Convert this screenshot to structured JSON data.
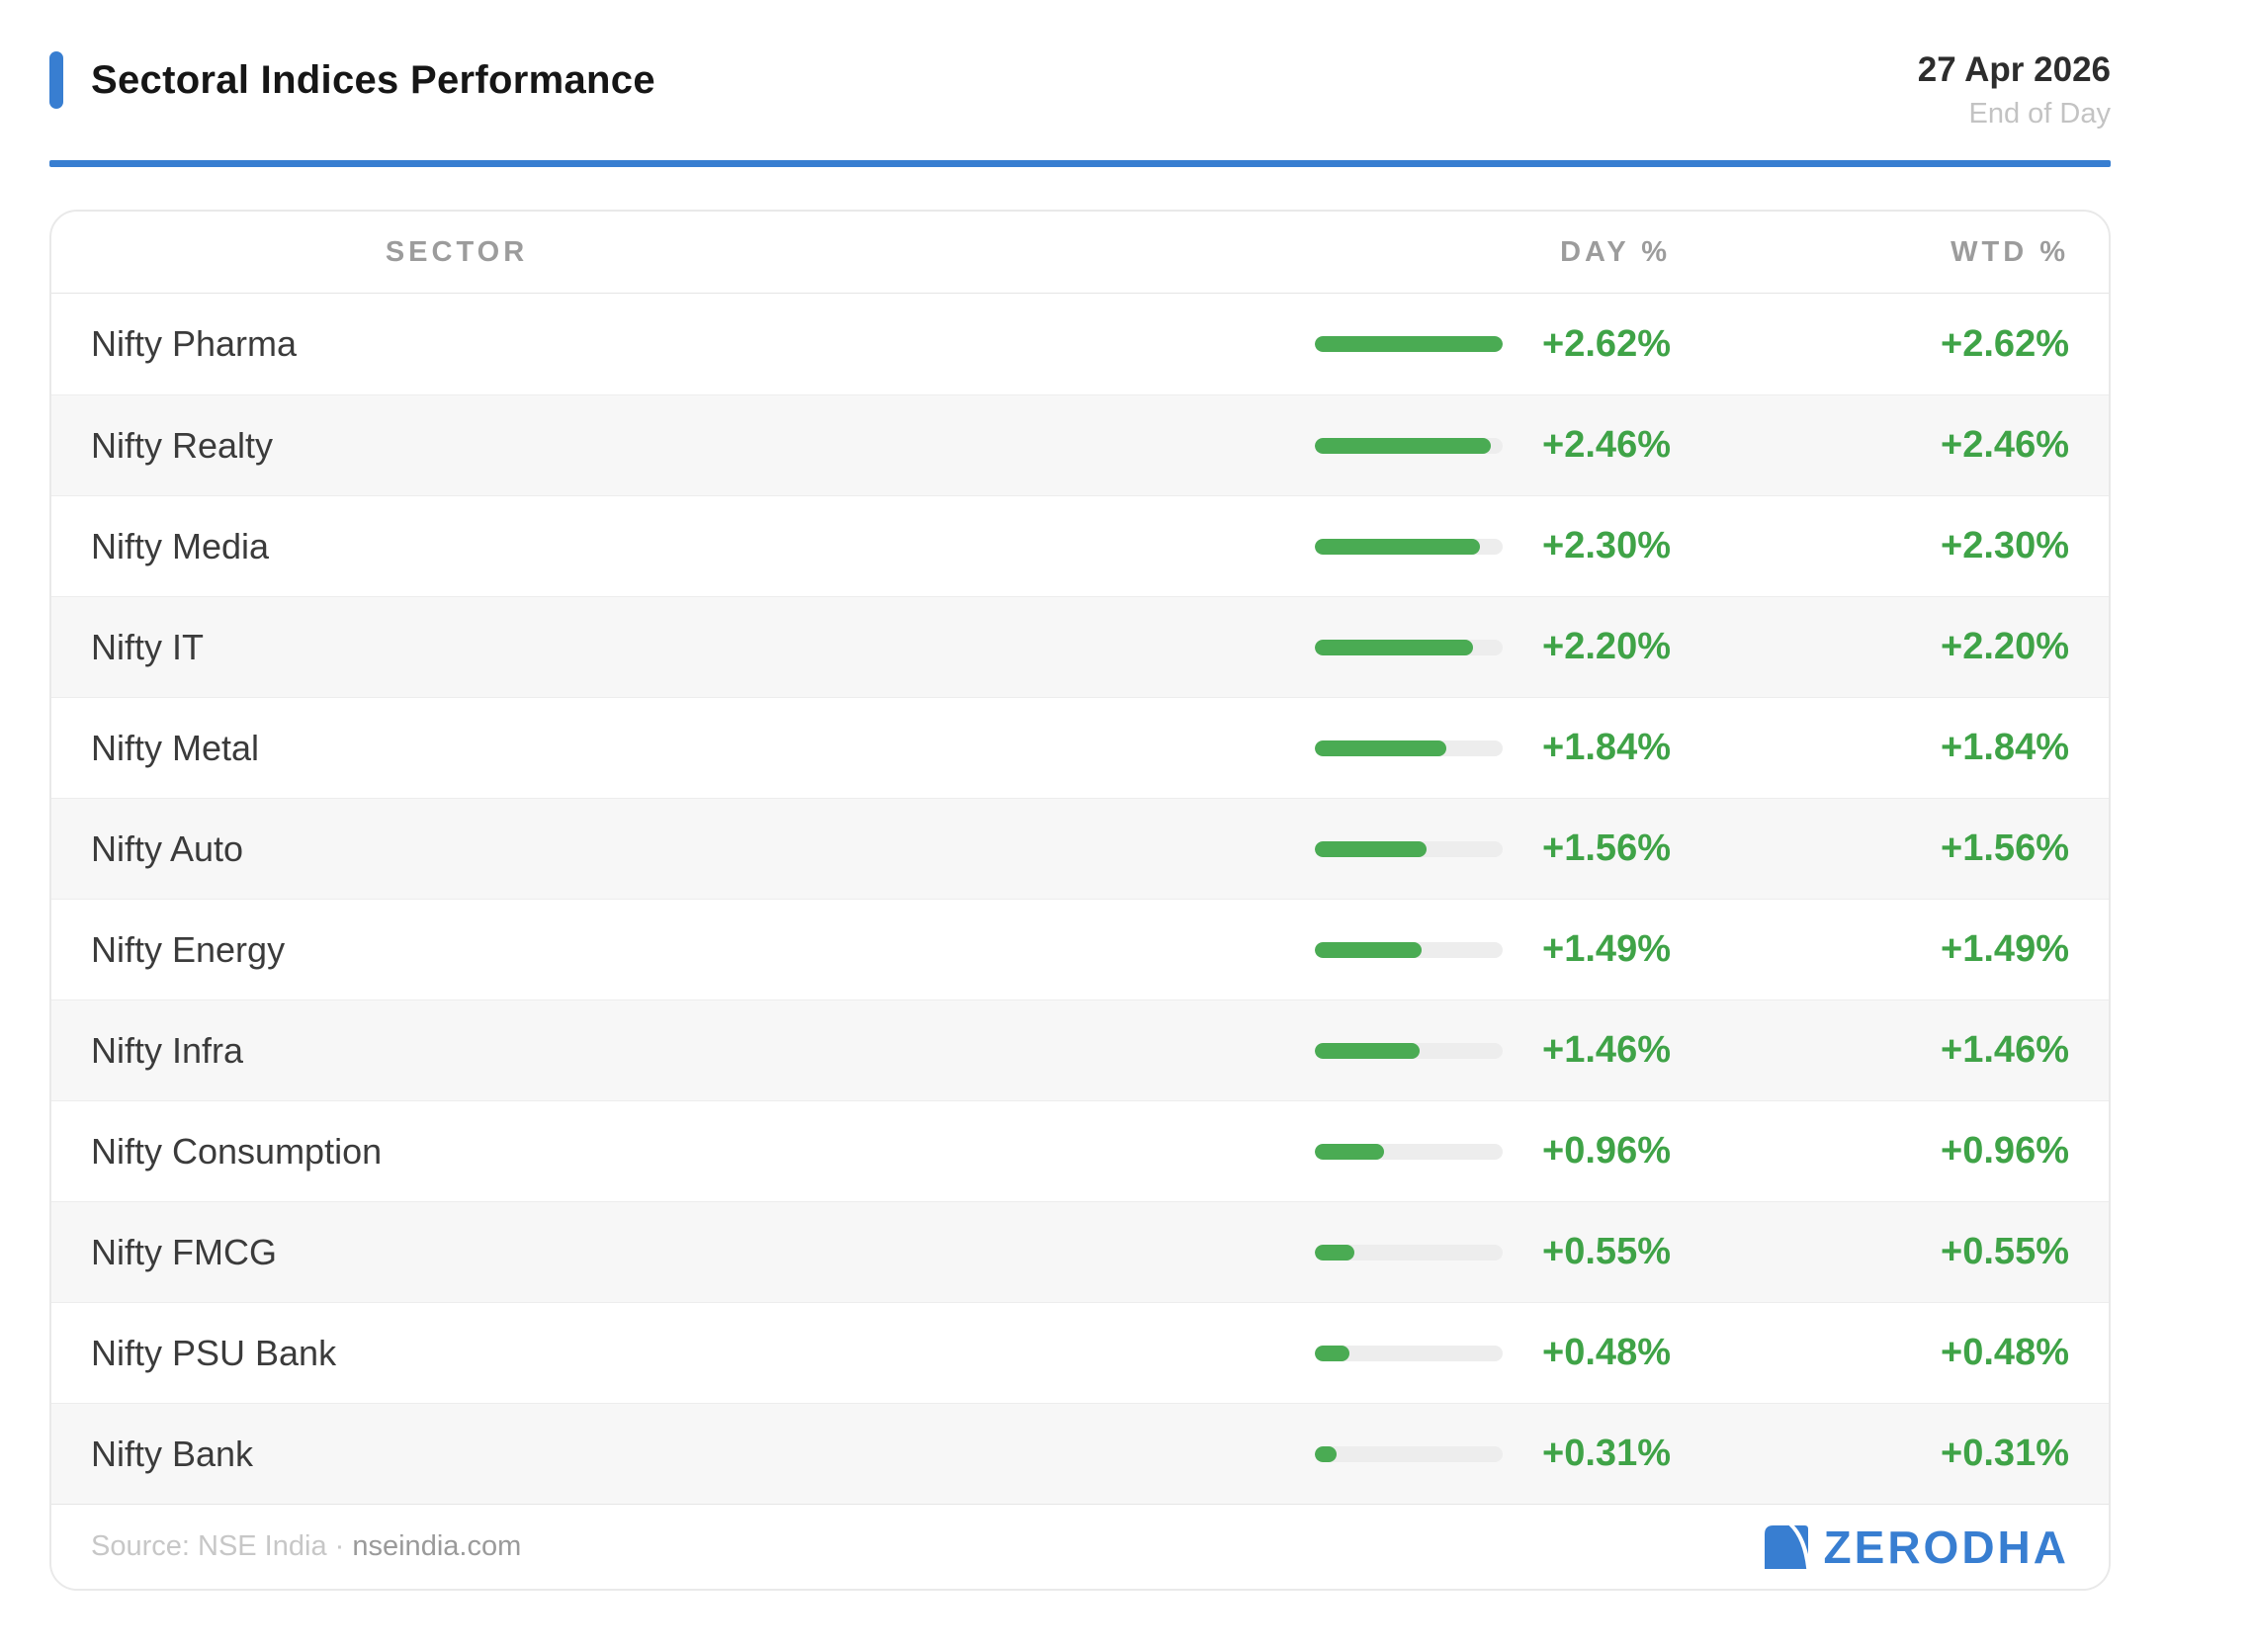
{
  "header": {
    "title": "Sectoral Indices Performance",
    "date": "27 Apr 2026",
    "period": "End of Day"
  },
  "table": {
    "columns": {
      "sector": "SECTOR",
      "day": "DAY %",
      "wtd": "WTD %"
    },
    "max_value": 2.62,
    "rows": [
      {
        "sector": "Nifty Pharma",
        "day": "+2.62%",
        "wtd": "+2.62%",
        "value": 2.62
      },
      {
        "sector": "Nifty Realty",
        "day": "+2.46%",
        "wtd": "+2.46%",
        "value": 2.46
      },
      {
        "sector": "Nifty Media",
        "day": "+2.30%",
        "wtd": "+2.30%",
        "value": 2.3
      },
      {
        "sector": "Nifty IT",
        "day": "+2.20%",
        "wtd": "+2.20%",
        "value": 2.2
      },
      {
        "sector": "Nifty Metal",
        "day": "+1.84%",
        "wtd": "+1.84%",
        "value": 1.84
      },
      {
        "sector": "Nifty Auto",
        "day": "+1.56%",
        "wtd": "+1.56%",
        "value": 1.56
      },
      {
        "sector": "Nifty Energy",
        "day": "+1.49%",
        "wtd": "+1.49%",
        "value": 1.49
      },
      {
        "sector": "Nifty Infra",
        "day": "+1.46%",
        "wtd": "+1.46%",
        "value": 1.46
      },
      {
        "sector": "Nifty Consumption",
        "day": "+0.96%",
        "wtd": "+0.96%",
        "value": 0.96
      },
      {
        "sector": "Nifty FMCG",
        "day": "+0.55%",
        "wtd": "+0.55%",
        "value": 0.55
      },
      {
        "sector": "Nifty PSU Bank",
        "day": "+0.48%",
        "wtd": "+0.48%",
        "value": 0.48
      },
      {
        "sector": "Nifty Bank",
        "day": "+0.31%",
        "wtd": "+0.31%",
        "value": 0.31
      }
    ]
  },
  "footer": {
    "source_prefix": "Source: NSE India ·",
    "source_domain": "nseindia.com",
    "brand": "ZERODHA",
    "brand_icon": "zerodha-logo-icon"
  },
  "colors": {
    "accent_blue": "#387ed1",
    "positive_green": "#3fa347",
    "bar_green": "#4aab53",
    "bar_track": "#ededed"
  },
  "chart_data": {
    "type": "bar",
    "orientation": "horizontal",
    "title": "Sectoral Indices Performance",
    "subtitle": "End of Day",
    "date": "27 Apr 2026",
    "categories": [
      "Nifty Pharma",
      "Nifty Realty",
      "Nifty Media",
      "Nifty IT",
      "Nifty Metal",
      "Nifty Auto",
      "Nifty Energy",
      "Nifty Infra",
      "Nifty Consumption",
      "Nifty FMCG",
      "Nifty PSU Bank",
      "Nifty Bank"
    ],
    "series": [
      {
        "name": "DAY %",
        "values": [
          2.62,
          2.46,
          2.3,
          2.2,
          1.84,
          1.56,
          1.49,
          1.46,
          0.96,
          0.55,
          0.48,
          0.31
        ]
      },
      {
        "name": "WTD %",
        "values": [
          2.62,
          2.46,
          2.3,
          2.2,
          1.84,
          1.56,
          1.49,
          1.46,
          0.96,
          0.55,
          0.48,
          0.31
        ]
      }
    ],
    "unit": "%",
    "xlim": [
      0,
      2.62
    ],
    "grid": false,
    "legend_position": "column-headers",
    "source": "NSE India · nseindia.com",
    "brand": "ZERODHA"
  }
}
